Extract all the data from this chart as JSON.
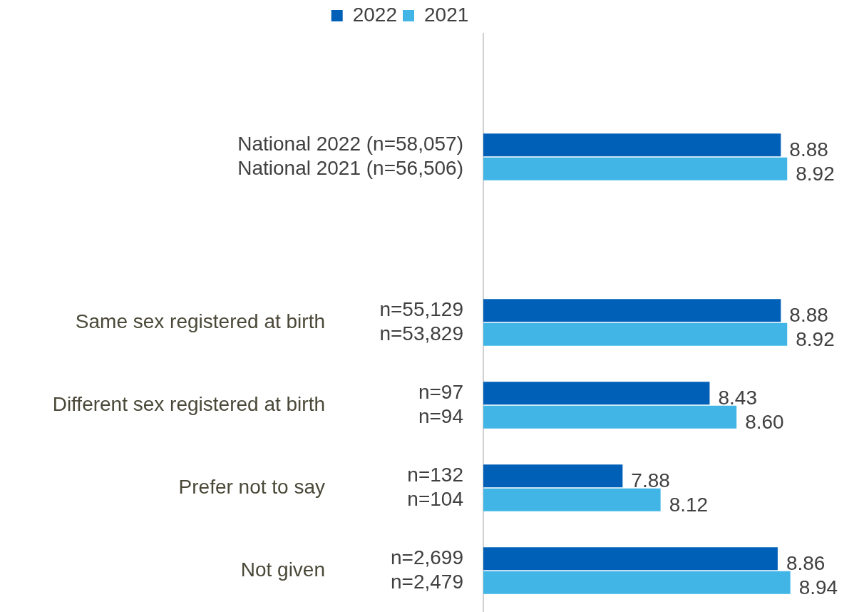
{
  "chart_data": {
    "type": "bar",
    "orientation": "horizontal",
    "categories": [
      null,
      null,
      null,
      "Same sex registered at birth",
      "Different sex registered at birth",
      "Prefer not to say",
      "Not given"
    ],
    "series": [
      {
        "name": "2022",
        "color": "#0060b8",
        "values": [
          null,
          8.88,
          null,
          8.88,
          8.43,
          7.88,
          8.86
        ],
        "value_labels": [
          null,
          "8.88",
          null,
          "8.88",
          "8.43",
          "7.88",
          "8.86"
        ]
      },
      {
        "name": "2021",
        "color": "#41b6e6",
        "values": [
          null,
          8.92,
          null,
          8.92,
          8.6,
          8.12,
          8.94
        ],
        "value_labels": [
          null,
          "8.92",
          null,
          "8.92",
          "8.60",
          "8.12",
          "8.94"
        ]
      }
    ],
    "ref_lines": [
      {
        "axis": "x",
        "value": 7,
        "color": "#d0d0d0"
      }
    ],
    "tick_labels": "y",
    "legend": "top",
    "annotations": [
      "National 2022 (n=58,057)",
      "National 2021 (n=56,506)",
      "n=55,129",
      "n=53,829",
      "n=97",
      "n=94",
      "n=132",
      "n=104",
      "n=2,699",
      "n=2,479"
    ]
  }
}
